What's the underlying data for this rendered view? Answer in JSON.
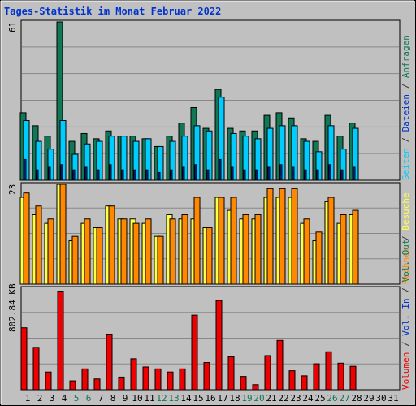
{
  "title": "Tages-Statistik im Monat Februar 2022",
  "days": [
    "1",
    "2",
    "3",
    "4",
    "5",
    "6",
    "7",
    "8",
    "9",
    "10",
    "11",
    "12",
    "13",
    "14",
    "15",
    "16",
    "17",
    "18",
    "19",
    "20",
    "21",
    "22",
    "23",
    "24",
    "25",
    "26",
    "27",
    "28",
    "29",
    "30",
    "31"
  ],
  "weekend_days": [
    5,
    6,
    12,
    13,
    19,
    20,
    26,
    27
  ],
  "colors": {
    "anfragen": "#117755",
    "dateien": "#0033cc",
    "seiten": "#00ccff",
    "besuche": "#ffff44",
    "rechner": "#ff8800",
    "vol_out": "#117755",
    "vol_in": "#0033cc",
    "volumen": "#ee0000",
    "weekday_label": "#000000",
    "weekend_label": "#117755"
  },
  "legend": {
    "top": [
      {
        "key": "seiten",
        "text": "Seiten"
      },
      {
        "key": "dateien",
        "text": "Dateien"
      },
      {
        "key": "anfragen",
        "text": "Anfragen"
      }
    ],
    "middle": [
      {
        "key": "rechner",
        "text": "Rechner"
      },
      {
        "key": "besuche",
        "text": "Besuche"
      }
    ],
    "bottom": [
      {
        "key": "volumen",
        "text": "Volumen"
      },
      {
        "key": "vol_in",
        "text": "Vol. In"
      },
      {
        "key": "vol_out",
        "text": "Vol. Out"
      }
    ]
  },
  "chart_data": [
    {
      "type": "bar",
      "panel": "top",
      "y_max_label": "61",
      "ylim": [
        0,
        61
      ],
      "categories": [
        "1",
        "2",
        "3",
        "4",
        "5",
        "6",
        "7",
        "8",
        "9",
        "10",
        "11",
        "12",
        "13",
        "14",
        "15",
        "16",
        "17",
        "18",
        "19",
        "20",
        "21",
        "22",
        "23",
        "24",
        "25",
        "26",
        "27",
        "28"
      ],
      "series": [
        {
          "name": "Anfragen",
          "values": [
            26,
            21,
            17,
            61,
            15,
            18,
            16,
            19,
            17,
            17,
            16,
            13,
            17,
            22,
            28,
            20,
            35,
            20,
            19,
            19,
            25,
            26,
            24,
            16,
            15,
            25,
            17,
            22
          ]
        },
        {
          "name": "Dateien",
          "values": [
            8,
            4,
            5,
            6,
            4,
            5,
            4,
            6,
            4,
            4,
            4,
            3,
            4,
            5,
            6,
            4,
            8,
            5,
            4,
            4,
            5,
            6,
            5,
            4,
            4,
            6,
            4,
            5
          ]
        },
        {
          "name": "Seiten",
          "values": [
            23,
            15,
            12,
            23,
            10,
            14,
            15,
            17,
            17,
            15,
            16,
            13,
            15,
            17,
            21,
            19,
            32,
            18,
            17,
            16,
            20,
            21,
            21,
            15,
            11,
            21,
            12,
            20
          ]
        }
      ]
    },
    {
      "type": "bar",
      "panel": "middle",
      "y_max_label": "23",
      "ylim": [
        0,
        23
      ],
      "categories": [
        "1",
        "2",
        "3",
        "4",
        "5",
        "6",
        "7",
        "8",
        "9",
        "10",
        "11",
        "12",
        "13",
        "14",
        "15",
        "16",
        "17",
        "18",
        "19",
        "20",
        "21",
        "22",
        "23",
        "24",
        "25",
        "26",
        "27",
        "28"
      ],
      "series": [
        {
          "name": "Besuche",
          "values": [
            20,
            16,
            14,
            23,
            10,
            14,
            13,
            18,
            15,
            15,
            14,
            11,
            16,
            15,
            15,
            13,
            20,
            17,
            15,
            15,
            20,
            20,
            20,
            14,
            10,
            19,
            14,
            16
          ]
        },
        {
          "name": "Rechner",
          "values": [
            21,
            18,
            15,
            23,
            11,
            15,
            13,
            18,
            15,
            14,
            15,
            11,
            15,
            16,
            20,
            13,
            20,
            20,
            16,
            16,
            22,
            22,
            22,
            15,
            12,
            20,
            16,
            17
          ]
        }
      ]
    },
    {
      "type": "bar",
      "panel": "bottom",
      "y_max_label": "802.84 KB",
      "ylim": [
        0,
        802.84
      ],
      "categories": [
        "1",
        "2",
        "3",
        "4",
        "5",
        "6",
        "7",
        "8",
        "9",
        "10",
        "11",
        "12",
        "13",
        "14",
        "15",
        "16",
        "17",
        "18",
        "19",
        "20",
        "21",
        "22",
        "23",
        "24",
        "25",
        "26",
        "27",
        "28"
      ],
      "series": [
        {
          "name": "Volumen",
          "values": [
            490,
            335,
            140,
            780,
            70,
            165,
            85,
            440,
            100,
            245,
            180,
            165,
            140,
            165,
            590,
            215,
            705,
            260,
            105,
            40,
            270,
            390,
            150,
            110,
            205,
            300,
            210,
            185
          ]
        },
        {
          "name": "Vol. In",
          "values": [
            0,
            0,
            0,
            0,
            0,
            0,
            0,
            0,
            0,
            0,
            0,
            0,
            0,
            0,
            0,
            0,
            0,
            0,
            0,
            0,
            0,
            0,
            0,
            0,
            0,
            0,
            0,
            0
          ]
        },
        {
          "name": "Vol. Out",
          "values": [
            0,
            0,
            0,
            0,
            0,
            0,
            0,
            0,
            0,
            0,
            0,
            0,
            0,
            0,
            0,
            0,
            0,
            0,
            0,
            0,
            0,
            0,
            0,
            0,
            0,
            0,
            0,
            0
          ]
        }
      ]
    }
  ]
}
